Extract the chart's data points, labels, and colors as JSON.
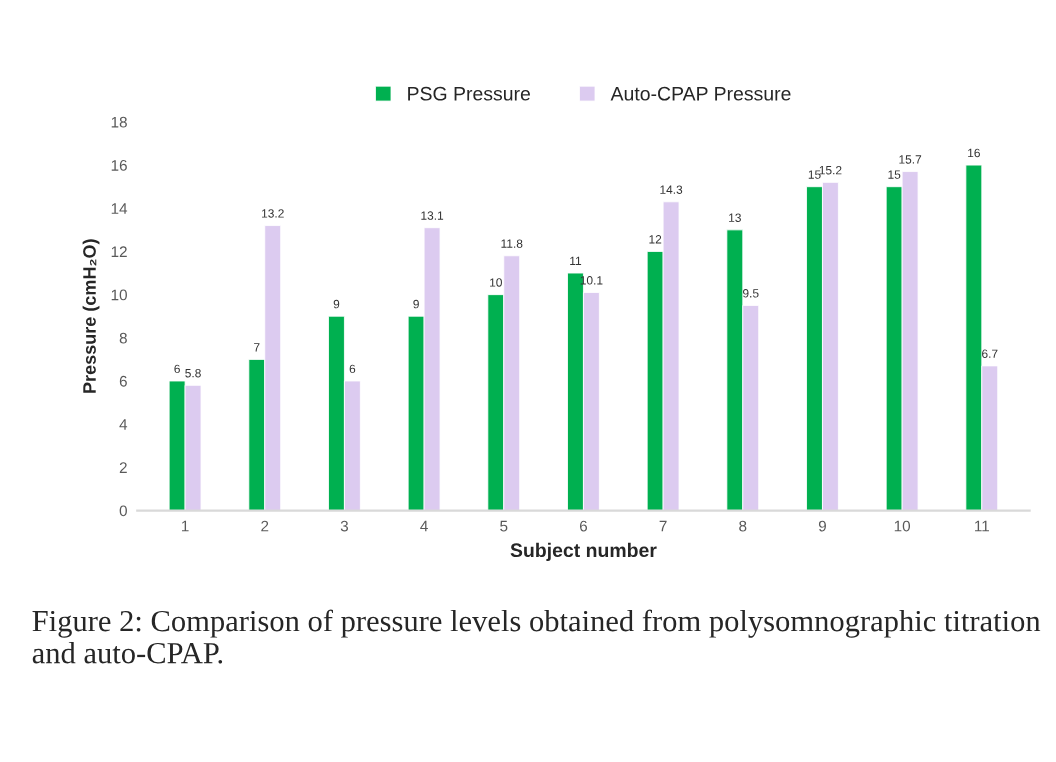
{
  "chart_data": {
    "type": "bar",
    "xlabel": "Subject number",
    "ylabel": "Pressure (cmH₂O)",
    "categories": [
      "1",
      "2",
      "3",
      "4",
      "5",
      "6",
      "7",
      "8",
      "9",
      "10",
      "11"
    ],
    "series": [
      {
        "name": "PSG Pressure",
        "color": "#00b050",
        "values": [
          6,
          7,
          9,
          9,
          10,
          11,
          12,
          13,
          15,
          15,
          16
        ]
      },
      {
        "name": "Auto-CPAP Pressure",
        "color": "#dccbf0",
        "values": [
          5.8,
          13.2,
          6,
          13.1,
          11.8,
          10.1,
          14.3,
          9.5,
          15.2,
          15.7,
          6.7
        ]
      }
    ],
    "ylim": [
      0,
      18
    ],
    "yticks": [
      0,
      2,
      4,
      6,
      8,
      10,
      12,
      14,
      16,
      18
    ],
    "data_labels": true,
    "grid": false,
    "legend": "top",
    "annotations": [
      "Figure 2: Comparison of pressure levels obtained from polysomnographic titration and auto-CPAP."
    ]
  }
}
